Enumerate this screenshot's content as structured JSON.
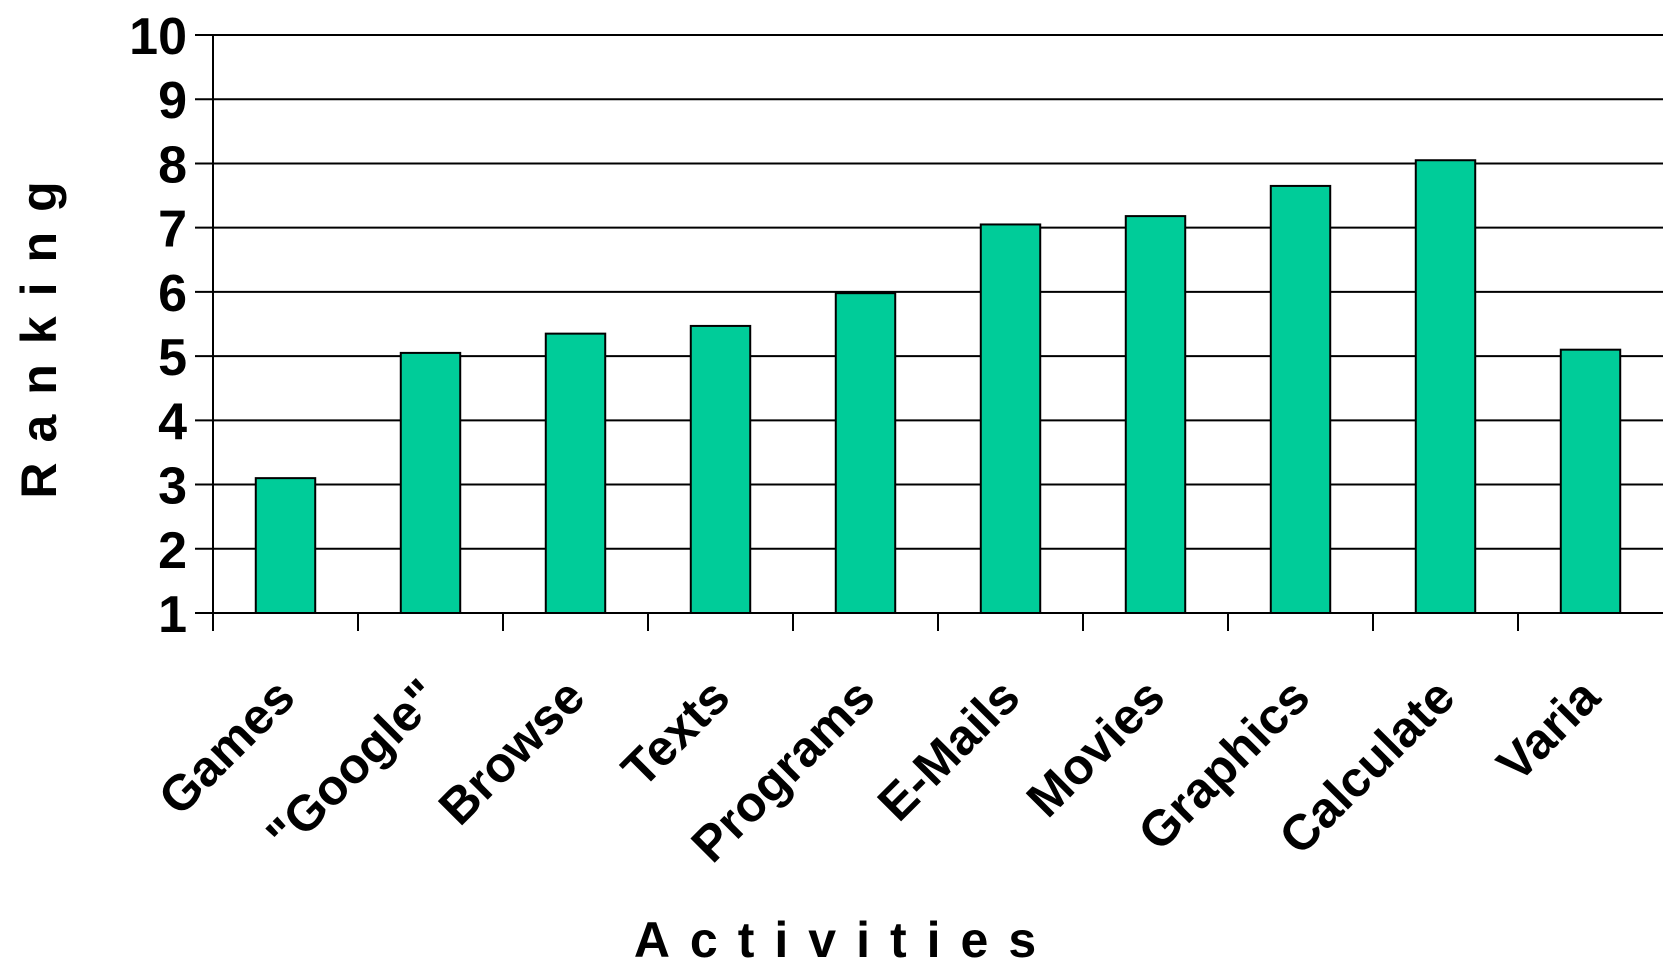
{
  "chart_data": {
    "type": "bar",
    "title": "",
    "xlabel": "Activities",
    "ylabel": "Ranking",
    "categories": [
      "Games",
      "\"Google\"",
      "Browse",
      "Texts",
      "Programs",
      "E-Mails",
      "Movies",
      "Graphics",
      "Calculate",
      "Varia"
    ],
    "values": [
      3.1,
      5.05,
      5.35,
      5.47,
      5.98,
      7.05,
      7.18,
      7.65,
      8.05,
      5.1
    ],
    "ylim": [
      1,
      10
    ],
    "yticks": [
      "1",
      "2",
      "3",
      "4",
      "5",
      "6",
      "7",
      "8",
      "9",
      "10"
    ],
    "grid": true,
    "legend": "none",
    "bar_color": "#00CC99",
    "bar_outline_color": "#000000"
  }
}
